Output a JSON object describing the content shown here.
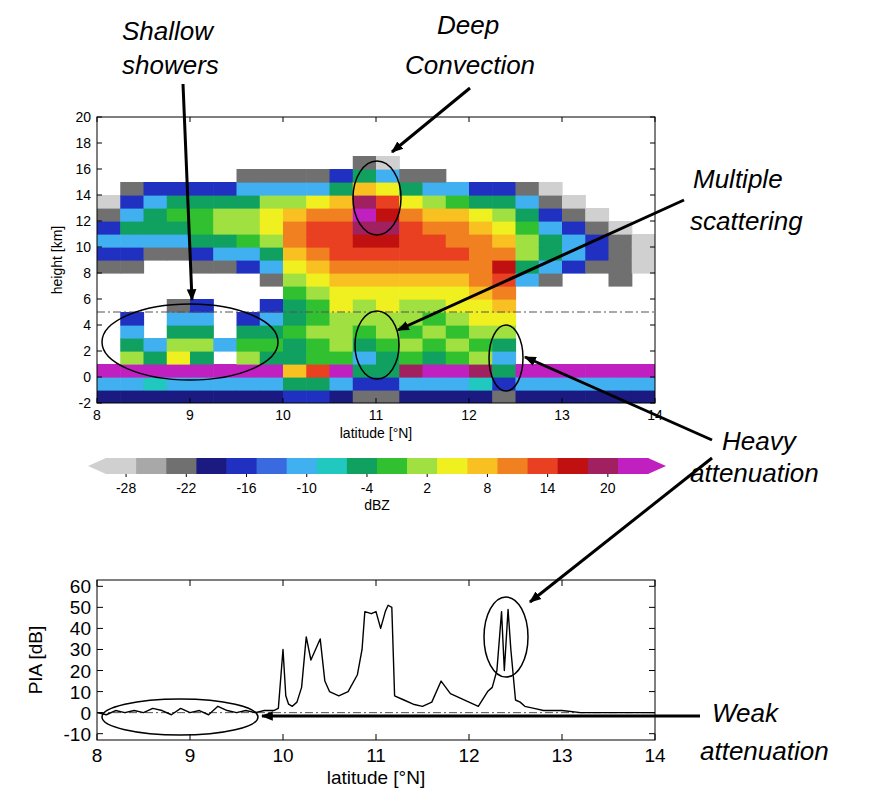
{
  "chart_data": [
    {
      "type": "heatmap",
      "xlabel": "latitude [°N]",
      "ylabel": "height [km]",
      "xlim": [
        8,
        14
      ],
      "ylim": [
        -2,
        20
      ],
      "xticks": [
        8,
        9,
        10,
        11,
        12,
        13,
        14
      ],
      "yticks": [
        -2,
        0,
        2,
        4,
        6,
        8,
        10,
        12,
        14,
        16,
        18,
        20
      ],
      "reference_line": 5,
      "x_edges": [
        8,
        8.25,
        8.5,
        8.75,
        9,
        9.25,
        9.5,
        9.75,
        10,
        10.25,
        10.5,
        10.75,
        11,
        11.25,
        11.5,
        11.75,
        12,
        12.25,
        12.5,
        12.75,
        13,
        13.25,
        13.5,
        13.75,
        14
      ],
      "y_edges": [
        -2,
        -1,
        0,
        1,
        2,
        3,
        4,
        5,
        6,
        7,
        8,
        9,
        10,
        11,
        12,
        13,
        14,
        15,
        16,
        17,
        18,
        19,
        20
      ],
      "cells": [
        [
          -20,
          -10,
          22,
          null,
          null,
          null,
          null,
          null,
          null,
          null,
          -22,
          -16,
          -10,
          -16,
          -22,
          -28,
          null,
          null,
          null,
          null,
          null,
          null
        ],
        [
          -20,
          -10,
          22,
          2,
          -4,
          -10,
          -16,
          null,
          null,
          null,
          -22,
          -16,
          -10,
          -4,
          -10,
          -16,
          -22,
          null,
          null,
          null,
          null,
          null
        ],
        [
          -20,
          -8,
          22,
          -4,
          -10,
          null,
          null,
          null,
          null,
          null,
          null,
          -22,
          -10,
          -4,
          -4,
          -10,
          -16,
          null,
          null,
          null,
          null,
          null
        ],
        [
          -20,
          -10,
          22,
          5,
          2,
          -4,
          -10,
          -22,
          null,
          null,
          null,
          -22,
          -10,
          -4,
          -1,
          -4,
          -16,
          null,
          null,
          null,
          null,
          null
        ],
        [
          -20,
          -10,
          22,
          -4,
          2,
          -4,
          -10,
          -16,
          null,
          null,
          -22,
          -16,
          -4,
          -1,
          -1,
          -4,
          -16,
          null,
          null,
          null,
          null,
          null
        ],
        [
          -20,
          -10,
          22,
          null,
          -10,
          null,
          null,
          null,
          null,
          null,
          -22,
          -10,
          -4,
          2,
          2,
          -4,
          -16,
          null,
          null,
          null,
          null,
          null
        ],
        [
          -20,
          -10,
          22,
          2,
          -1,
          -4,
          -16,
          null,
          null,
          null,
          -16,
          -10,
          -1,
          2,
          2,
          -4,
          -10,
          -22,
          null,
          null,
          null,
          null
        ],
        [
          -20,
          -10,
          22,
          -4,
          -1,
          -4,
          -10,
          -16,
          null,
          -22,
          -10,
          -4,
          2,
          5,
          5,
          2,
          -10,
          -22,
          null,
          null,
          null,
          null
        ],
        [
          -16,
          -4,
          8,
          -4,
          -4,
          -1,
          -4,
          -4,
          -1,
          2,
          5,
          8,
          11,
          11,
          8,
          2,
          -10,
          -22,
          null,
          null,
          null,
          null
        ],
        [
          -16,
          -4,
          14,
          -1,
          -1,
          2,
          -1,
          -1,
          2,
          5,
          8,
          11,
          14,
          14,
          11,
          5,
          -10,
          -22,
          null,
          null,
          null,
          null
        ],
        [
          -20,
          -10,
          22,
          -1,
          2,
          2,
          2,
          5,
          5,
          8,
          11,
          14,
          14,
          14,
          11,
          8,
          -4,
          -16,
          null,
          null,
          null,
          null
        ],
        [
          -22,
          -16,
          -4,
          -10,
          -4,
          -1,
          2,
          2,
          5,
          8,
          11,
          14,
          17,
          20,
          23,
          20,
          8,
          -4,
          -22,
          null,
          null,
          null
        ],
        [
          -22,
          -16,
          -4,
          -4,
          -1,
          2,
          2,
          5,
          5,
          8,
          11,
          14,
          17,
          20,
          17,
          14,
          5,
          -10,
          -28,
          null,
          null,
          null
        ],
        [
          -20,
          -10,
          20,
          -1,
          2,
          -1,
          2,
          2,
          5,
          8,
          11,
          14,
          14,
          14,
          11,
          5,
          -4,
          -22,
          null,
          null,
          null,
          null
        ],
        [
          -20,
          -10,
          22,
          -4,
          -1,
          2,
          -1,
          2,
          5,
          8,
          11,
          14,
          14,
          11,
          8,
          2,
          -10,
          -22,
          null,
          null,
          null,
          null
        ],
        [
          -20,
          -10,
          22,
          -1,
          2,
          -1,
          2,
          5,
          5,
          8,
          11,
          14,
          11,
          11,
          8,
          -1,
          -10,
          null,
          null,
          null,
          null,
          null
        ],
        [
          -20,
          -8,
          20,
          2,
          -1,
          2,
          5,
          5,
          8,
          11,
          11,
          11,
          11,
          8,
          5,
          -4,
          -16,
          null,
          null,
          null,
          null,
          null
        ],
        [
          -22,
          -16,
          -4,
          -10,
          -4,
          2,
          5,
          8,
          11,
          14,
          17,
          11,
          8,
          5,
          2,
          -4,
          -16,
          null,
          null,
          null,
          null,
          null
        ],
        [
          -20,
          -10,
          22,
          null,
          null,
          null,
          null,
          null,
          null,
          -10,
          -4,
          2,
          2,
          -1,
          -4,
          -10,
          -22,
          null,
          null,
          null,
          null,
          null
        ],
        [
          -20,
          -10,
          22,
          null,
          null,
          null,
          null,
          null,
          null,
          -22,
          -10,
          -4,
          -4,
          -10,
          -16,
          -22,
          -28,
          null,
          null,
          null,
          null,
          null
        ],
        [
          -20,
          -10,
          22,
          null,
          null,
          null,
          null,
          null,
          null,
          null,
          -16,
          -10,
          -10,
          -16,
          -22,
          -28,
          null,
          null,
          null,
          null,
          null,
          null
        ],
        [
          -20,
          -10,
          22,
          null,
          null,
          null,
          null,
          null,
          null,
          null,
          -22,
          -16,
          -16,
          -22,
          -28,
          null,
          null,
          null,
          null,
          null,
          null,
          null
        ],
        [
          -20,
          -10,
          22,
          null,
          null,
          null,
          null,
          null,
          null,
          -22,
          -22,
          -22,
          -22,
          -28,
          null,
          null,
          null,
          null,
          null,
          null,
          null,
          null
        ],
        [
          -20,
          -10,
          22,
          null,
          null,
          null,
          null,
          null,
          null,
          null,
          -28,
          -28,
          -28,
          null,
          null,
          null,
          null,
          null,
          null,
          null,
          null,
          null
        ]
      ],
      "colorbar": {
        "label": "dBZ",
        "range": [
          -30,
          24
        ],
        "ticks": [
          -28,
          -22,
          -16,
          -10,
          -4,
          2,
          8,
          14,
          20
        ],
        "colors": [
          "#d0d0d0",
          "#a8a8a8",
          "#707070",
          "#1a1a80",
          "#2030c0",
          "#3a6ae0",
          "#40b0f0",
          "#20c8c0",
          "#10a060",
          "#30c030",
          "#a0e040",
          "#f0f020",
          "#f8c020",
          "#f08020",
          "#e84020",
          "#c01010",
          "#a02060",
          "#c020c0"
        ]
      }
    },
    {
      "type": "line",
      "xlabel": "latitude [°N]",
      "ylabel": "PIA [dB]",
      "xlim": [
        8,
        14
      ],
      "ylim": [
        -13,
        63
      ],
      "xticks": [
        8,
        9,
        10,
        11,
        12,
        13,
        14
      ],
      "yticks": [
        -10,
        0,
        10,
        20,
        30,
        40,
        50,
        60
      ],
      "reference_line": 0,
      "color": "#000000",
      "x": [
        8.0,
        8.1,
        8.2,
        8.3,
        8.4,
        8.5,
        8.6,
        8.7,
        8.8,
        8.9,
        9.0,
        9.1,
        9.2,
        9.3,
        9.4,
        9.5,
        9.6,
        9.7,
        9.8,
        9.9,
        9.95,
        10.0,
        10.03,
        10.06,
        10.1,
        10.15,
        10.2,
        10.25,
        10.3,
        10.35,
        10.4,
        10.45,
        10.5,
        10.6,
        10.7,
        10.8,
        10.85,
        10.88,
        10.95,
        11.0,
        11.05,
        11.1,
        11.13,
        11.17,
        11.2,
        11.3,
        11.4,
        11.5,
        11.6,
        11.7,
        11.75,
        11.8,
        11.9,
        12.0,
        12.1,
        12.2,
        12.25,
        12.3,
        12.35,
        12.38,
        12.42,
        12.45,
        12.5,
        12.55,
        12.6,
        12.7,
        12.8,
        13.0,
        13.2,
        13.4,
        13.6,
        13.8,
        14.0
      ],
      "values": [
        0,
        -1,
        1,
        0,
        1,
        0,
        2,
        1,
        -1,
        2,
        0,
        1,
        -1,
        3,
        1,
        0,
        1,
        0,
        1,
        1,
        2,
        30,
        8,
        4,
        3,
        5,
        12,
        36,
        25,
        30,
        35,
        15,
        10,
        8,
        10,
        18,
        30,
        48,
        47,
        48,
        40,
        48,
        51,
        50,
        8,
        6,
        4,
        3,
        5,
        15,
        12,
        9,
        7,
        5,
        3,
        10,
        12,
        20,
        48,
        20,
        49,
        30,
        6,
        5,
        3,
        2,
        1,
        1,
        0,
        0,
        0,
        0,
        0
      ]
    }
  ],
  "annotations": [
    {
      "text": "Shallow showers"
    },
    {
      "text": "Deep Convection"
    },
    {
      "text": "Multiple scattering"
    },
    {
      "text": "Heavy attenuation"
    },
    {
      "text": "Weak attenuation"
    }
  ]
}
